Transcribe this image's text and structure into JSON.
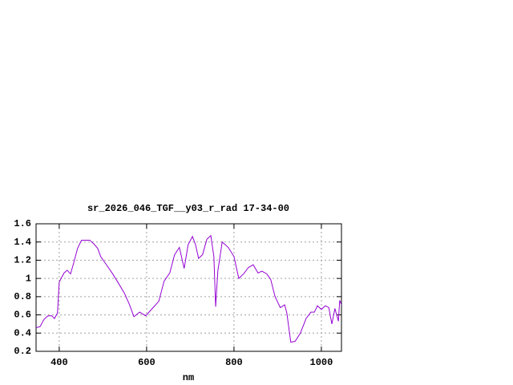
{
  "chart_data": {
    "type": "line",
    "title": "sr_2026_046_TGF__y03_r_rad 17-34-00",
    "x_label": "nm",
    "x": [
      347,
      356,
      365,
      374,
      383,
      389,
      396,
      400,
      411,
      418,
      426,
      433,
      442,
      451,
      470,
      481,
      488,
      495,
      508,
      521,
      534,
      549,
      561,
      571,
      584,
      598,
      613,
      628,
      640,
      653,
      664,
      675,
      686,
      695,
      705,
      712,
      719,
      728,
      738,
      747,
      754,
      758,
      763,
      773,
      787,
      800,
      811,
      822,
      833,
      844,
      855,
      864,
      875,
      884,
      894,
      906,
      916,
      921,
      930,
      940,
      952,
      965,
      976,
      984,
      991,
      1000,
      1009,
      1017,
      1024,
      1031,
      1039,
      1042,
      1046
    ],
    "series": [
      {
        "color": "#9400d3",
        "values": [
          0.46,
          0.47,
          0.55,
          0.59,
          0.59,
          0.56,
          0.62,
          0.96,
          1.06,
          1.09,
          1.05,
          1.17,
          1.33,
          1.42,
          1.42,
          1.37,
          1.33,
          1.24,
          1.15,
          1.06,
          0.96,
          0.84,
          0.71,
          0.58,
          0.63,
          0.59,
          0.67,
          0.75,
          0.97,
          1.06,
          1.26,
          1.34,
          1.11,
          1.37,
          1.46,
          1.37,
          1.22,
          1.26,
          1.43,
          1.47,
          1.24,
          0.69,
          1.08,
          1.4,
          1.34,
          1.24,
          1.0,
          1.05,
          1.12,
          1.15,
          1.06,
          1.08,
          1.05,
          0.99,
          0.8,
          0.68,
          0.71,
          0.62,
          0.3,
          0.31,
          0.4,
          0.56,
          0.63,
          0.63,
          0.7,
          0.66,
          0.7,
          0.68,
          0.5,
          0.67,
          0.53,
          0.76,
          0.71
        ]
      }
    ],
    "xlim": [
      347,
      1046
    ],
    "ylim": [
      0.2,
      1.6
    ],
    "xticks": [
      400,
      600,
      800,
      1000
    ],
    "yticks": [
      0.2,
      0.4,
      0.6,
      0.8,
      1,
      1.2,
      1.4,
      1.6
    ],
    "grid": true
  }
}
